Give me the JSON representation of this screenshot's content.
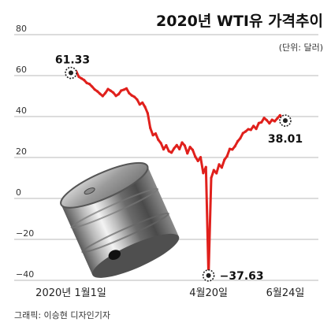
{
  "chart_data": {
    "type": "line",
    "title": "2020년 WTI유 가격추이",
    "unit": "(단위: 달러)",
    "ylim": [
      -40,
      80
    ],
    "yticks": [
      80,
      60,
      40,
      20,
      0,
      -20,
      -40
    ],
    "ytick_labels": [
      "80",
      "60",
      "40",
      "20",
      "0",
      "−20",
      "−40"
    ],
    "x_tick_labels": [
      "2020년 1월1일",
      "4월20일",
      "6월24일"
    ],
    "grid": true,
    "series": [
      {
        "color": "#e0201c",
        "values": [
          61.33,
          60.5,
          62.1,
          59.4,
          58.6,
          57.8,
          56.4,
          55.9,
          54.6,
          53.2,
          52.3,
          51.1,
          50.0,
          51.5,
          53.4,
          52.6,
          51.7,
          50.1,
          50.9,
          52.7,
          53.1,
          53.7,
          51.4,
          50.3,
          49.6,
          48.3,
          45.9,
          46.8,
          44.7,
          41.6,
          34.4,
          30.9,
          31.7,
          28.7,
          27.0,
          24.0,
          25.9,
          23.1,
          22.4,
          24.5,
          26.0,
          24.1,
          27.3,
          25.8,
          22.0,
          25.1,
          23.7,
          20.4,
          18.3,
          20.1,
          12.4,
          15.3,
          -37.63,
          10.0,
          13.8,
          12.3,
          16.6,
          15.1,
          18.9,
          20.6,
          24.2,
          23.9,
          25.5,
          27.9,
          29.4,
          31.9,
          32.7,
          33.8,
          33.5,
          35.4,
          34.0,
          36.8,
          37.2,
          39.3,
          38.2,
          36.7,
          38.4,
          37.7,
          39.1,
          40.6,
          39.0,
          38.01
        ]
      }
    ],
    "annotations": [
      {
        "label": "61.33",
        "index": 0,
        "value": 61.33
      },
      {
        "label": "−37.63",
        "index": 52,
        "value": -37.63
      },
      {
        "label": "38.01",
        "index": 81,
        "value": 38.01
      }
    ]
  },
  "credit": "그래픽: 이승현 디자인기자",
  "colors": {
    "line": "#e0201c",
    "grid": "#b8b8b8",
    "marker": "#222222"
  }
}
